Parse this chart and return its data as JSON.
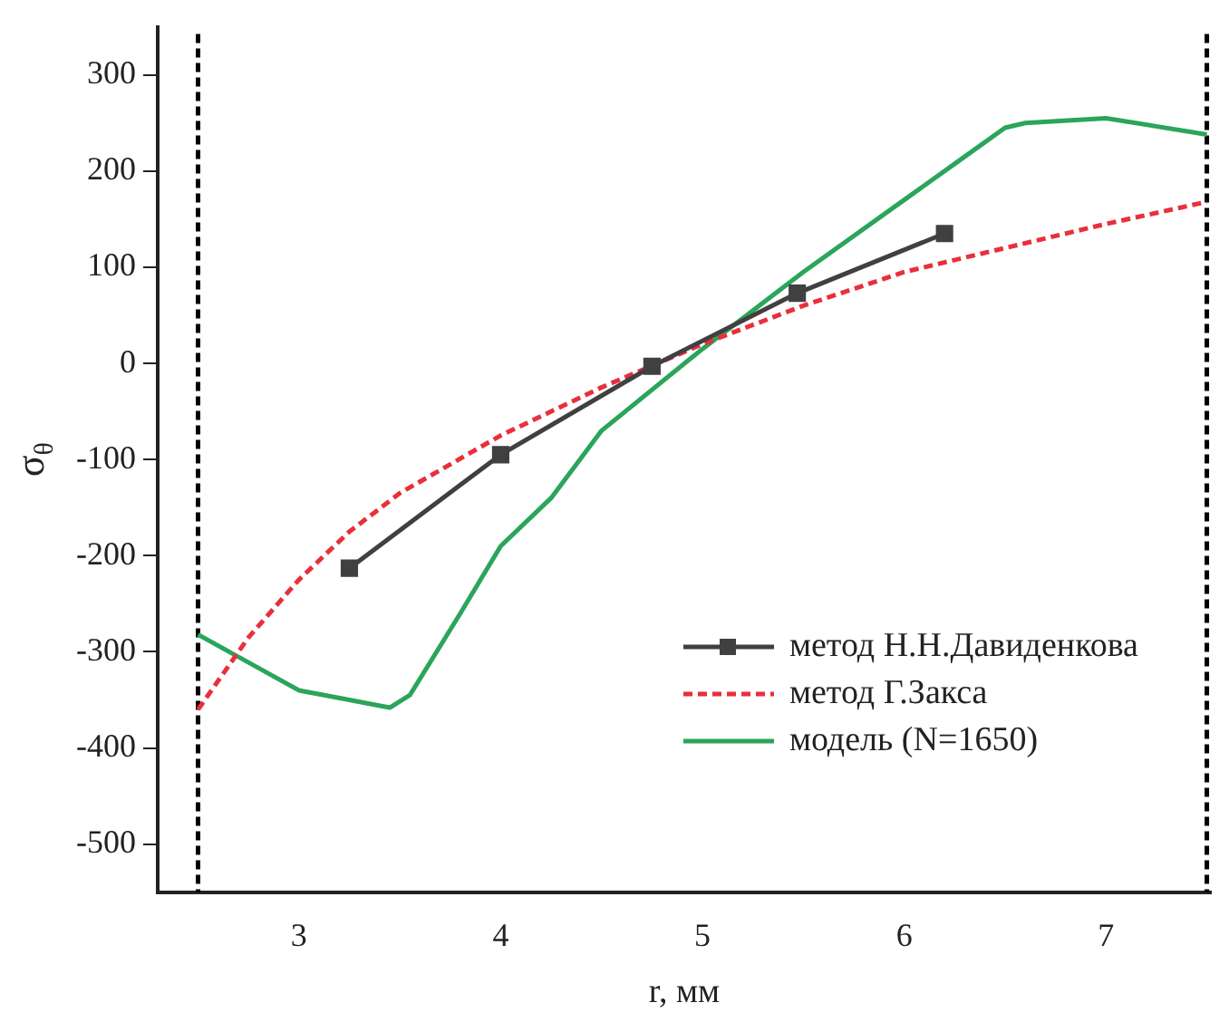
{
  "chart_data": {
    "type": "line",
    "xlabel": "r, мм",
    "ylabel": "σ$_{θ}$",
    "xlim": [
      2.3,
      7.52
    ],
    "xticks": [
      3,
      4,
      5,
      6,
      7
    ],
    "ylim": [
      -550,
      350
    ],
    "yticks": [
      -500,
      -400,
      -300,
      -200,
      -100,
      0,
      100,
      200,
      300
    ],
    "grid": false,
    "legend": "bottom right",
    "series": [
      {
        "name": "метод Н.Н.Давиденкова",
        "color": "#404040",
        "marker": "square",
        "line_style": "solid",
        "x": [
          3.25,
          4.0,
          4.75,
          5.47,
          6.2
        ],
        "values": [
          -213,
          -95,
          -3,
          73,
          135
        ]
      },
      {
        "name": "метод Г.Закса",
        "color": "#e8303a",
        "marker": "none",
        "line_style": "dashed",
        "x": [
          2.5,
          2.75,
          3.0,
          3.25,
          3.5,
          4.0,
          4.5,
          5.0,
          5.5,
          6.0,
          6.5,
          7.0,
          7.5
        ],
        "values": [
          -360,
          -285,
          -225,
          -175,
          -135,
          -75,
          -25,
          20,
          60,
          95,
          120,
          145,
          168
        ]
      },
      {
        "name": "модель (N=1650)",
        "color": "#2aa55a",
        "marker": "none",
        "line_style": "solid",
        "x": [
          2.5,
          3.0,
          3.25,
          3.45,
          3.55,
          3.8,
          4.0,
          4.25,
          4.5,
          5.0,
          5.5,
          6.0,
          6.3,
          6.5,
          6.6,
          7.0,
          7.5
        ],
        "values": [
          -282,
          -340,
          -350,
          -358,
          -345,
          -260,
          -190,
          -140,
          -70,
          15,
          95,
          170,
          215,
          245,
          250,
          255,
          238
        ]
      }
    ],
    "ref_lines": [
      {
        "axis": "x",
        "value": 2.5,
        "color": "#000000",
        "line_style": "dashed"
      },
      {
        "axis": "x",
        "value": 7.5,
        "color": "#000000",
        "line_style": "dashed"
      }
    ]
  }
}
